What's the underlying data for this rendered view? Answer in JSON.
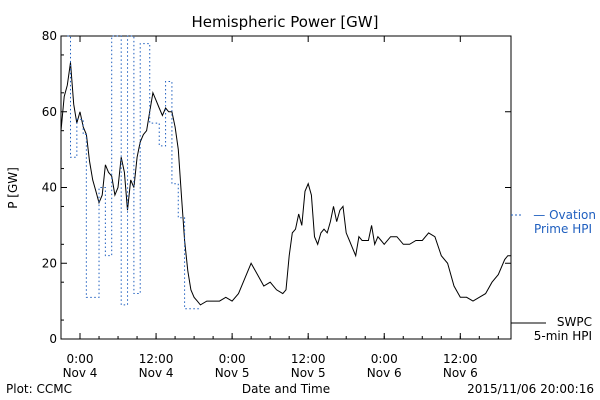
{
  "chart_data": {
    "type": "line",
    "title": "Hemispheric Power [GW]",
    "ylabel": "P [GW]",
    "xlabel": "Date and Time",
    "ylim": [
      0,
      80
    ],
    "yticks": [
      0,
      20,
      40,
      60,
      80
    ],
    "xlim": [
      "2015-11-03T21:00",
      "2015-11-06T20:00"
    ],
    "xticks": [
      {
        "t": "2015-11-04T00:00",
        "line1": "0:00",
        "line2": "Nov 4"
      },
      {
        "t": "2015-11-04T12:00",
        "line1": "12:00",
        "line2": "Nov 4"
      },
      {
        "t": "2015-11-05T00:00",
        "line1": "0:00",
        "line2": "Nov 5"
      },
      {
        "t": "2015-11-05T12:00",
        "line1": "12:00",
        "line2": "Nov 5"
      },
      {
        "t": "2015-11-06T00:00",
        "line1": "0:00",
        "line2": "Nov 6"
      },
      {
        "t": "2015-11-06T12:00",
        "line1": "12:00",
        "line2": "Nov 6"
      }
    ],
    "grid": false,
    "series": [
      {
        "name": "SWPC 5-min HPI",
        "legend_lines": [
          "SWPC",
          "5-min HPI"
        ],
        "color": "#000000",
        "style": "solid",
        "points": [
          [
            "2015-11-03T21:00",
            55
          ],
          [
            "2015-11-03T21:30",
            64
          ],
          [
            "2015-11-03T22:00",
            67
          ],
          [
            "2015-11-03T22:30",
            73
          ],
          [
            "2015-11-03T23:00",
            62
          ],
          [
            "2015-11-03T23:30",
            57
          ],
          [
            "2015-11-04T00:00",
            60
          ],
          [
            "2015-11-04T00:30",
            56
          ],
          [
            "2015-11-04T01:00",
            54
          ],
          [
            "2015-11-04T01:30",
            47
          ],
          [
            "2015-11-04T02:00",
            42
          ],
          [
            "2015-11-04T02:30",
            39
          ],
          [
            "2015-11-04T03:00",
            36
          ],
          [
            "2015-11-04T03:30",
            38
          ],
          [
            "2015-11-04T04:00",
            46
          ],
          [
            "2015-11-04T04:30",
            44
          ],
          [
            "2015-11-04T05:00",
            43
          ],
          [
            "2015-11-04T05:30",
            38
          ],
          [
            "2015-11-04T06:00",
            40
          ],
          [
            "2015-11-04T06:30",
            48
          ],
          [
            "2015-11-04T07:00",
            44
          ],
          [
            "2015-11-04T07:30",
            34
          ],
          [
            "2015-11-04T08:00",
            42
          ],
          [
            "2015-11-04T08:30",
            40
          ],
          [
            "2015-11-04T09:00",
            48
          ],
          [
            "2015-11-04T09:30",
            52
          ],
          [
            "2015-11-04T10:00",
            54
          ],
          [
            "2015-11-04T10:30",
            55
          ],
          [
            "2015-11-04T11:00",
            60
          ],
          [
            "2015-11-04T11:30",
            65
          ],
          [
            "2015-11-04T12:00",
            63
          ],
          [
            "2015-11-04T12:30",
            61
          ],
          [
            "2015-11-04T13:00",
            59
          ],
          [
            "2015-11-04T13:30",
            61
          ],
          [
            "2015-11-04T14:00",
            60
          ],
          [
            "2015-11-04T14:30",
            60
          ],
          [
            "2015-11-04T15:00",
            56
          ],
          [
            "2015-11-04T15:30",
            50
          ],
          [
            "2015-11-04T16:00",
            38
          ],
          [
            "2015-11-04T16:30",
            26
          ],
          [
            "2015-11-04T17:00",
            18
          ],
          [
            "2015-11-04T17:30",
            13
          ],
          [
            "2015-11-04T18:00",
            11
          ],
          [
            "2015-11-04T18:30",
            10
          ],
          [
            "2015-11-04T19:00",
            9
          ],
          [
            "2015-11-04T20:00",
            10
          ],
          [
            "2015-11-04T21:00",
            10
          ],
          [
            "2015-11-04T22:00",
            10
          ],
          [
            "2015-11-04T23:00",
            11
          ],
          [
            "2015-11-05T00:00",
            10
          ],
          [
            "2015-11-05T01:00",
            12
          ],
          [
            "2015-11-05T02:00",
            16
          ],
          [
            "2015-11-05T03:00",
            20
          ],
          [
            "2015-11-05T04:00",
            17
          ],
          [
            "2015-11-05T05:00",
            14
          ],
          [
            "2015-11-05T06:00",
            15
          ],
          [
            "2015-11-05T07:00",
            13
          ],
          [
            "2015-11-05T08:00",
            12
          ],
          [
            "2015-11-05T08:30",
            13
          ],
          [
            "2015-11-05T09:00",
            22
          ],
          [
            "2015-11-05T09:30",
            28
          ],
          [
            "2015-11-05T10:00",
            29
          ],
          [
            "2015-11-05T10:30",
            33
          ],
          [
            "2015-11-05T11:00",
            30
          ],
          [
            "2015-11-05T11:30",
            39
          ],
          [
            "2015-11-05T12:00",
            41
          ],
          [
            "2015-11-05T12:30",
            38
          ],
          [
            "2015-11-05T13:00",
            27
          ],
          [
            "2015-11-05T13:30",
            25
          ],
          [
            "2015-11-05T14:00",
            28
          ],
          [
            "2015-11-05T14:30",
            29
          ],
          [
            "2015-11-05T15:00",
            28
          ],
          [
            "2015-11-05T15:30",
            31
          ],
          [
            "2015-11-05T16:00",
            35
          ],
          [
            "2015-11-05T16:30",
            31
          ],
          [
            "2015-11-05T17:00",
            34
          ],
          [
            "2015-11-05T17:30",
            35
          ],
          [
            "2015-11-05T18:00",
            28
          ],
          [
            "2015-11-05T18:30",
            26
          ],
          [
            "2015-11-05T19:00",
            24
          ],
          [
            "2015-11-05T19:30",
            22
          ],
          [
            "2015-11-05T20:00",
            27
          ],
          [
            "2015-11-05T20:30",
            26
          ],
          [
            "2015-11-05T21:00",
            26
          ],
          [
            "2015-11-05T21:30",
            26
          ],
          [
            "2015-11-05T22:00",
            30
          ],
          [
            "2015-11-05T22:30",
            25
          ],
          [
            "2015-11-05T23:00",
            27
          ],
          [
            "2015-11-05T23:30",
            26
          ],
          [
            "2015-11-06T00:00",
            25
          ],
          [
            "2015-11-06T01:00",
            27
          ],
          [
            "2015-11-06T02:00",
            27
          ],
          [
            "2015-11-06T03:00",
            25
          ],
          [
            "2015-11-06T04:00",
            25
          ],
          [
            "2015-11-06T05:00",
            26
          ],
          [
            "2015-11-06T06:00",
            26
          ],
          [
            "2015-11-06T07:00",
            28
          ],
          [
            "2015-11-06T08:00",
            27
          ],
          [
            "2015-11-06T09:00",
            22
          ],
          [
            "2015-11-06T10:00",
            20
          ],
          [
            "2015-11-06T11:00",
            14
          ],
          [
            "2015-11-06T12:00",
            11
          ],
          [
            "2015-11-06T13:00",
            11
          ],
          [
            "2015-11-06T14:00",
            10
          ],
          [
            "2015-11-06T15:00",
            11
          ],
          [
            "2015-11-06T16:00",
            12
          ],
          [
            "2015-11-06T17:00",
            15
          ],
          [
            "2015-11-06T18:00",
            17
          ],
          [
            "2015-11-06T19:00",
            21
          ],
          [
            "2015-11-06T19:30",
            22
          ],
          [
            "2015-11-06T20:00",
            22
          ]
        ]
      },
      {
        "name": "Ovation Prime HPI",
        "legend_lines": [
          "— Ovation",
          "Prime HPI"
        ],
        "color": "#1f5fbf",
        "style": "dotted-step",
        "points": [
          [
            "2015-11-03T22:00",
            80
          ],
          [
            "2015-11-03T22:30",
            48
          ],
          [
            "2015-11-03T23:30",
            58
          ],
          [
            "2015-11-04T00:30",
            54
          ],
          [
            "2015-11-04T01:00",
            11
          ],
          [
            "2015-11-04T03:00",
            40
          ],
          [
            "2015-11-04T04:00",
            22
          ],
          [
            "2015-11-04T05:00",
            80
          ],
          [
            "2015-11-04T06:30",
            9
          ],
          [
            "2015-11-04T07:30",
            80
          ],
          [
            "2015-11-04T08:30",
            12
          ],
          [
            "2015-11-04T09:30",
            78
          ],
          [
            "2015-11-04T11:00",
            57
          ],
          [
            "2015-11-04T12:30",
            51
          ],
          [
            "2015-11-04T13:30",
            68
          ],
          [
            "2015-11-04T14:30",
            41
          ],
          [
            "2015-11-04T15:30",
            32
          ],
          [
            "2015-11-04T16:30",
            8
          ],
          [
            "2015-11-04T18:00",
            8
          ]
        ]
      }
    ]
  },
  "footer": {
    "plot_credit": "Plot: CCMC",
    "timestamp": "2015/11/06 20:00:16"
  }
}
